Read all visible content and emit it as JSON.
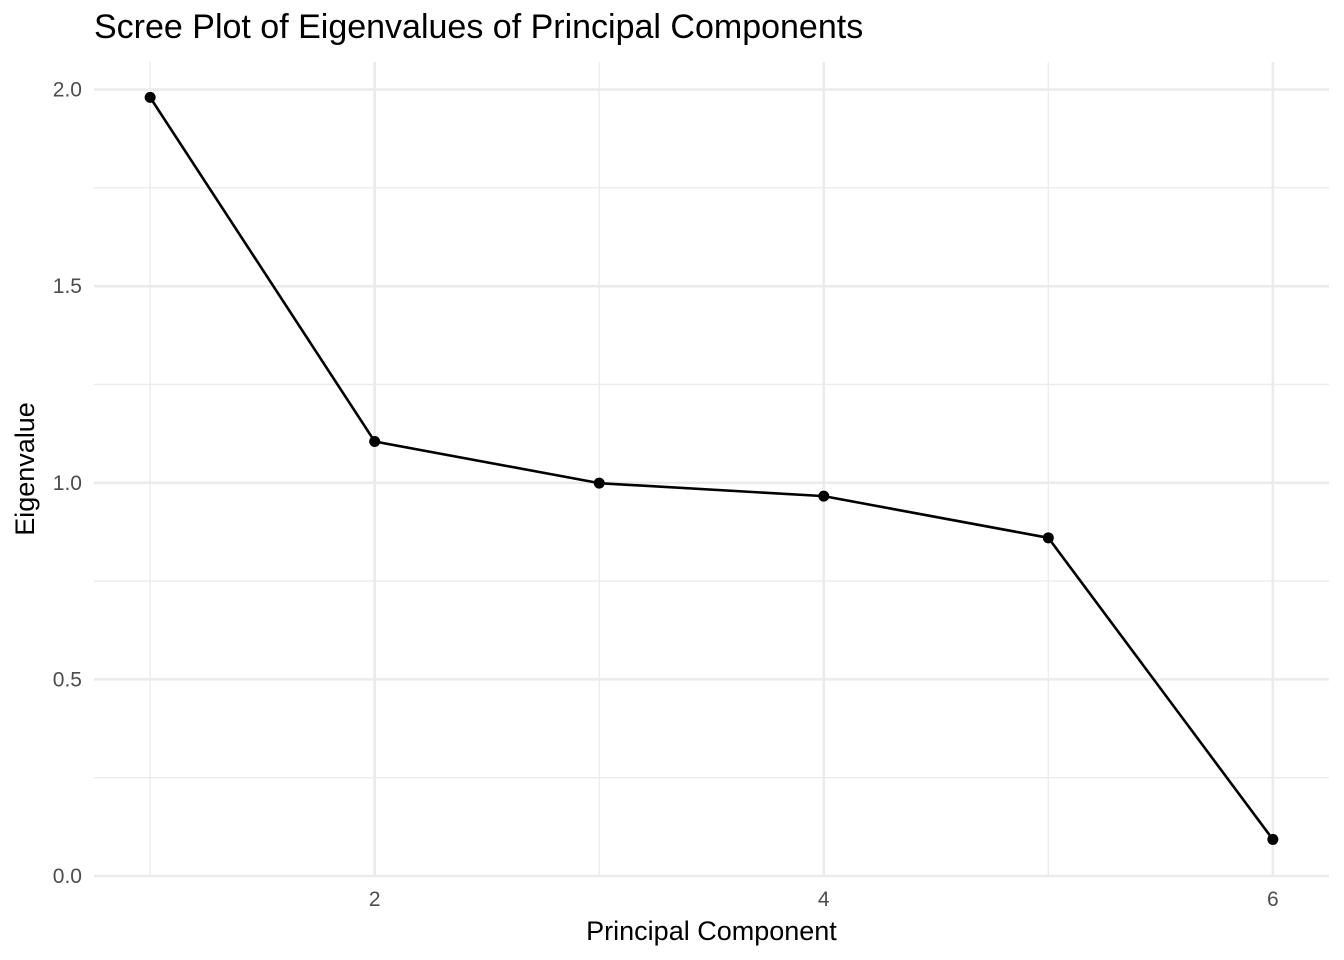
{
  "chart_data": {
    "type": "line",
    "title": "Scree Plot of Eigenvalues of Principal Components",
    "xlabel": "Principal Component",
    "ylabel": "Eigenvalue",
    "x": [
      1,
      2,
      3,
      4,
      5,
      6
    ],
    "series": [
      {
        "values": [
          1.98,
          1.105,
          0.999,
          0.966,
          0.86,
          0.093
        ]
      }
    ],
    "xticks": [
      2,
      4,
      6
    ],
    "xtick_labels": [
      "2",
      "4",
      "6"
    ],
    "yticks": [
      0.0,
      0.5,
      1.0,
      1.5,
      2.0
    ],
    "ytick_labels": [
      "0.0",
      "0.5",
      "1.0",
      "1.5",
      "2.0"
    ],
    "xlim": [
      0.75,
      6.25
    ],
    "ylim": [
      0.0,
      2.07
    ],
    "grid": true,
    "line_color": "#000000",
    "grid_color": "#ebebeb",
    "marker": "circle"
  }
}
